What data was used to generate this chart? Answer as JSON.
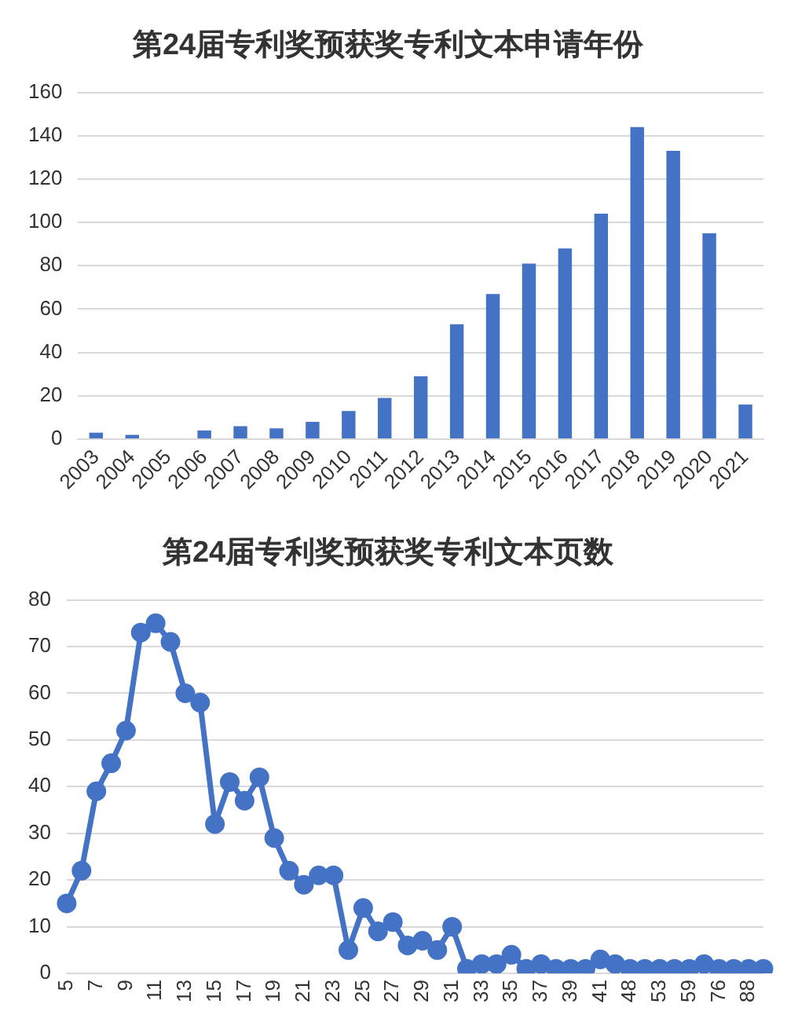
{
  "chart_data": [
    {
      "type": "bar",
      "title": "第24届专利奖预获奖专利文本申请年份",
      "categories": [
        "2003",
        "2004",
        "2005",
        "2006",
        "2007",
        "2008",
        "2009",
        "2010",
        "2011",
        "2012",
        "2013",
        "2014",
        "2015",
        "2016",
        "2017",
        "2018",
        "2019",
        "2020",
        "2021"
      ],
      "values": [
        3,
        2,
        0,
        4,
        6,
        5,
        8,
        13,
        19,
        29,
        53,
        67,
        81,
        88,
        104,
        144,
        133,
        95,
        16
      ],
      "color": "#4472c4",
      "ylim": [
        0,
        160
      ],
      "yticks": [
        0,
        20,
        40,
        60,
        80,
        100,
        120,
        140,
        160
      ],
      "grid": "y"
    },
    {
      "type": "line",
      "title": "第24届专利奖预获奖专利文本页数",
      "categories": [
        "5",
        null,
        "7",
        null,
        "9",
        null,
        "11",
        null,
        "13",
        null,
        "15",
        null,
        "17",
        null,
        "19",
        null,
        "21",
        null,
        "23",
        null,
        "25",
        null,
        "27",
        null,
        "29",
        null,
        "31",
        null,
        "33",
        null,
        "35",
        null,
        "37",
        null,
        "39",
        null,
        "41",
        null,
        "48",
        null,
        "53",
        null,
        "59",
        null,
        "76",
        null,
        "88",
        null
      ],
      "values": [
        15,
        22,
        39,
        45,
        52,
        73,
        75,
        71,
        60,
        58,
        32,
        41,
        37,
        42,
        29,
        22,
        19,
        21,
        21,
        5,
        14,
        9,
        11,
        6,
        7,
        5,
        10,
        1,
        2,
        2,
        4,
        1,
        2,
        1,
        1,
        1,
        3,
        2,
        1,
        1,
        1,
        1,
        1,
        2,
        1,
        1,
        1,
        1
      ],
      "color": "#4472c4",
      "ylim": [
        0,
        80
      ],
      "yticks": [
        0,
        10,
        20,
        30,
        40,
        50,
        60,
        70,
        80
      ],
      "grid": "y",
      "marker": "circle",
      "line_style": "solid"
    }
  ]
}
